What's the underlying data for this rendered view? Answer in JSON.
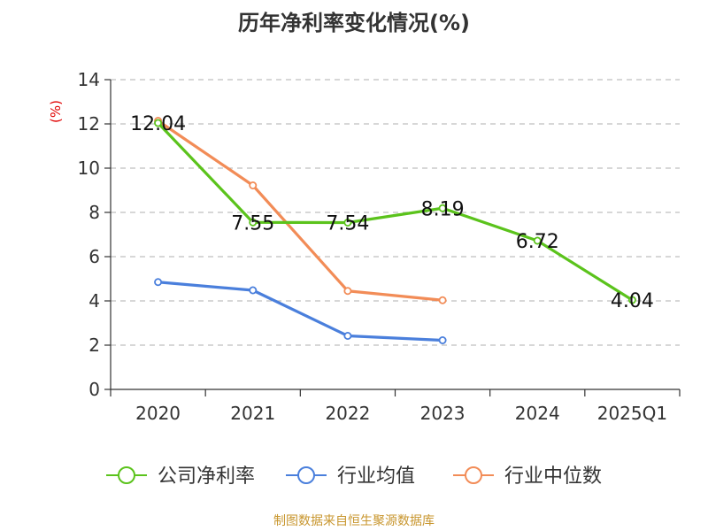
{
  "chart_data": {
    "type": "line",
    "title": "历年净利率变化情况(%)",
    "ylabel": "(%)",
    "xlabel": "",
    "categories": [
      "2020",
      "2021",
      "2022",
      "2023",
      "2024",
      "2025Q1"
    ],
    "ylim": [
      0,
      14
    ],
    "yticks": [
      0,
      2,
      4,
      6,
      8,
      10,
      12,
      14
    ],
    "grid": true,
    "legend_position": "bottom",
    "series": [
      {
        "name": "公司净利率",
        "color": "#5bc31c",
        "values": [
          12.04,
          7.55,
          7.54,
          8.19,
          6.72,
          4.04
        ],
        "labels": [
          "12.04",
          "7.55",
          "7.54",
          "8.19",
          "6.72",
          "4.04"
        ],
        "show_labels": true
      },
      {
        "name": "行业均值",
        "color": "#4a7fdc",
        "values": [
          4.85,
          4.48,
          2.42,
          2.22,
          null,
          null
        ],
        "show_labels": false
      },
      {
        "name": "行业中位数",
        "color": "#f28c57",
        "values": [
          12.14,
          9.22,
          4.45,
          4.03,
          null,
          null
        ],
        "show_labels": false
      }
    ],
    "source": "制图数据来自恒生聚源数据库"
  }
}
